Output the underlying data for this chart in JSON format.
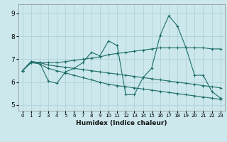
{
  "xlabel": "Humidex (Indice chaleur)",
  "xlim": [
    -0.5,
    23.5
  ],
  "ylim": [
    4.75,
    9.4
  ],
  "yticks": [
    5,
    6,
    7,
    8,
    9
  ],
  "xticks": [
    0,
    1,
    2,
    3,
    4,
    5,
    6,
    7,
    8,
    9,
    10,
    11,
    12,
    13,
    14,
    15,
    16,
    17,
    18,
    19,
    20,
    21,
    22,
    23
  ],
  "bg_color": "#cce8ec",
  "grid_color": "#aacdd4",
  "line_color": "#1e6e6a",
  "series": {
    "line1_x": [
      0,
      1,
      2,
      3,
      4,
      5,
      6,
      7,
      8,
      9,
      10,
      11,
      12,
      13,
      14,
      15,
      16,
      17,
      18,
      19,
      20,
      21,
      22,
      23
    ],
    "line1_y": [
      6.5,
      6.9,
      6.85,
      6.05,
      5.95,
      6.45,
      6.6,
      6.85,
      7.3,
      7.15,
      7.8,
      7.6,
      5.45,
      5.45,
      6.2,
      6.6,
      8.05,
      8.9,
      8.45,
      7.5,
      6.3,
      6.3,
      5.6,
      5.3
    ],
    "line2_x": [
      0,
      1,
      2,
      3,
      4,
      5,
      6,
      7,
      8,
      9,
      10,
      11,
      12,
      13,
      14,
      15,
      16,
      17,
      18,
      19,
      20,
      21,
      22,
      23
    ],
    "line2_y": [
      6.5,
      6.9,
      6.85,
      6.85,
      6.85,
      6.9,
      6.95,
      7.0,
      7.05,
      7.1,
      7.2,
      7.25,
      7.3,
      7.35,
      7.4,
      7.45,
      7.5,
      7.5,
      7.5,
      7.5,
      7.5,
      7.5,
      7.45,
      7.45
    ],
    "line3_x": [
      0,
      1,
      2,
      3,
      4,
      5,
      6,
      7,
      8,
      9,
      10,
      11,
      12,
      13,
      14,
      15,
      16,
      17,
      18,
      19,
      20,
      21,
      22,
      23
    ],
    "line3_y": [
      6.5,
      6.85,
      6.85,
      6.75,
      6.7,
      6.65,
      6.6,
      6.55,
      6.5,
      6.45,
      6.4,
      6.35,
      6.3,
      6.25,
      6.2,
      6.15,
      6.1,
      6.05,
      6.0,
      5.95,
      5.9,
      5.85,
      5.8,
      5.75
    ],
    "line4_x": [
      0,
      1,
      2,
      3,
      4,
      5,
      6,
      7,
      8,
      9,
      10,
      11,
      12,
      13,
      14,
      15,
      16,
      17,
      18,
      19,
      20,
      21,
      22,
      23
    ],
    "line4_y": [
      6.5,
      6.85,
      6.8,
      6.6,
      6.5,
      6.4,
      6.3,
      6.2,
      6.1,
      6.0,
      5.9,
      5.85,
      5.8,
      5.75,
      5.7,
      5.65,
      5.6,
      5.55,
      5.5,
      5.45,
      5.4,
      5.35,
      5.3,
      5.25
    ]
  }
}
